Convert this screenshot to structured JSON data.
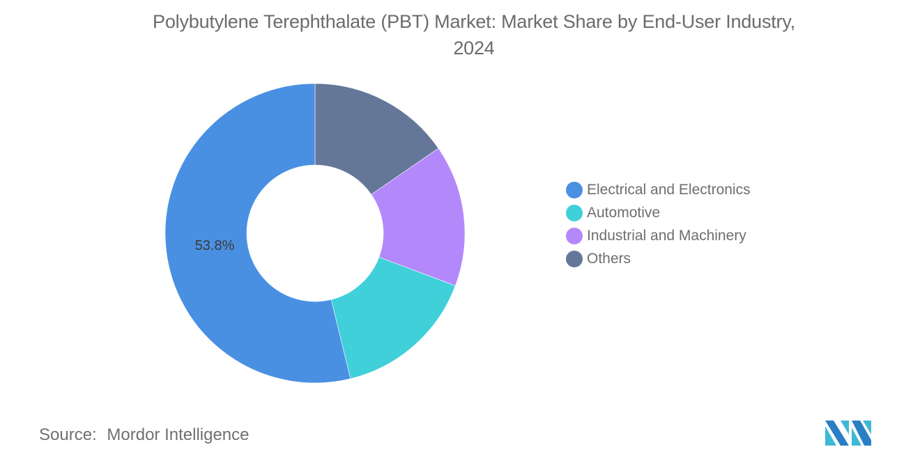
{
  "title": {
    "line1": "Polybutylene Terephthalate (PBT) Market: Market Share by End-User Industry,",
    "line2": "2024"
  },
  "chart_data": {
    "type": "pie",
    "subtype": "donut",
    "title": "Polybutylene Terephthalate (PBT) Market: Market Share by End-User Industry, 2024",
    "categories": [
      "Electrical and Electronics",
      "Automotive",
      "Industrial and Machinery",
      "Others"
    ],
    "values": [
      53.8,
      15.5,
      15.3,
      15.4
    ],
    "colors": [
      "#4a90e2",
      "#40d0da",
      "#b388fb",
      "#657799"
    ],
    "data_labels": [
      {
        "category": "Electrical and Electronics",
        "text": "53.8%"
      }
    ],
    "legend_position": "right",
    "unit": "%"
  },
  "labels": {
    "electrical": "53.8%"
  },
  "legend": {
    "items": [
      {
        "label": "Electrical and Electronics",
        "color": "#4a90e2"
      },
      {
        "label": "Automotive",
        "color": "#40d0da"
      },
      {
        "label": "Industrial and Machinery",
        "color": "#b388fb"
      },
      {
        "label": "Others",
        "color": "#657799"
      }
    ]
  },
  "footer": {
    "source_label": "Source:",
    "source_value": "Mordor Intelligence",
    "logo": "mordor-intelligence-logo"
  }
}
